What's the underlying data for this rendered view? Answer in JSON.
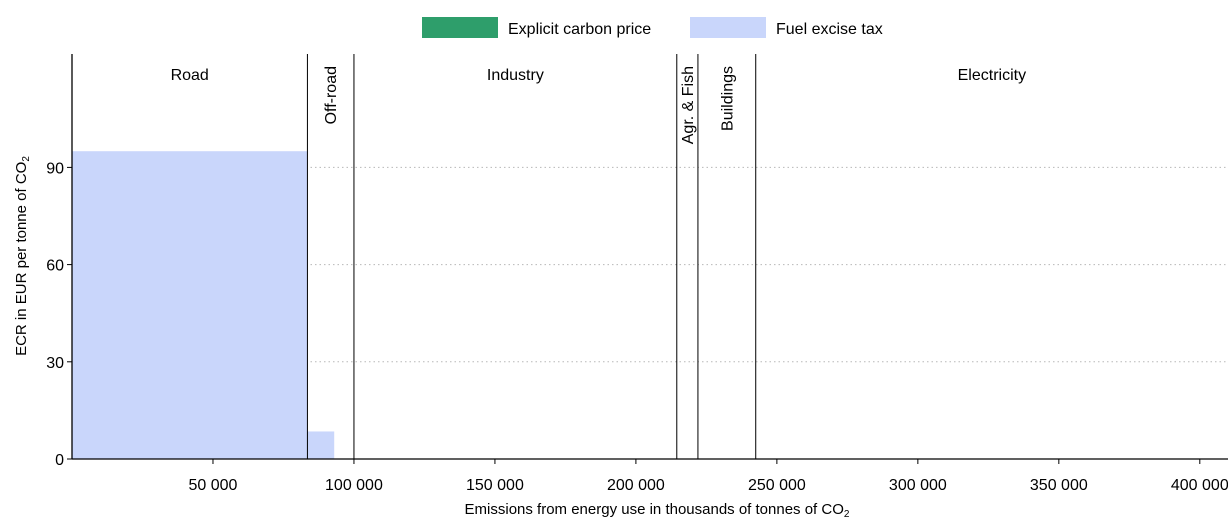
{
  "chart_data": {
    "type": "bar",
    "subtype": "variable-width stacked bar",
    "xlabel": "Emissions from energy use in thousands of tonnes of CO",
    "xlabel_subscript": "2",
    "ylabel": "ECR in EUR per tonne of CO",
    "ylabel_subscript": "2",
    "xlim": [
      0,
      410000
    ],
    "ylim": [
      0,
      125
    ],
    "x_ticks": [
      50000,
      100000,
      150000,
      200000,
      250000,
      300000,
      350000,
      400000
    ],
    "x_tick_labels": [
      "50 000",
      "100 000",
      "150 000",
      "200 000",
      "250 000",
      "300 000",
      "350 000",
      "400 000"
    ],
    "y_ticks": [
      0,
      30,
      60,
      90
    ],
    "y_tick_labels": [
      "0",
      "30",
      "60",
      "90"
    ],
    "grid": "horizontal dotted",
    "legend_placement": "top-center",
    "series": [
      {
        "name": "Explicit carbon price",
        "color": "#2e9e6b"
      },
      {
        "name": "Fuel excise tax",
        "color": "#c9d6fb"
      }
    ],
    "sectors": [
      {
        "name": "Road",
        "start": 0,
        "end": 83500,
        "label_orientation": "horizontal"
      },
      {
        "name": "Off-road",
        "start": 83500,
        "end": 100000,
        "label_orientation": "vertical"
      },
      {
        "name": "Industry",
        "start": 100000,
        "end": 214500,
        "label_orientation": "horizontal"
      },
      {
        "name": "Agr. & Fish",
        "start": 214500,
        "end": 222000,
        "label_orientation": "vertical"
      },
      {
        "name": "Buildings",
        "start": 222000,
        "end": 242500,
        "label_orientation": "vertical"
      },
      {
        "name": "Electricity",
        "start": 242500,
        "end": 410000,
        "label_orientation": "horizontal"
      }
    ],
    "bars": [
      {
        "sector": "Road",
        "start": 0,
        "end": 83500,
        "explicit_carbon_price": 0,
        "fuel_excise_tax": 95
      },
      {
        "sector": "Off-road",
        "start": 83500,
        "end": 93000,
        "explicit_carbon_price": 0,
        "fuel_excise_tax": 8.5
      }
    ]
  }
}
